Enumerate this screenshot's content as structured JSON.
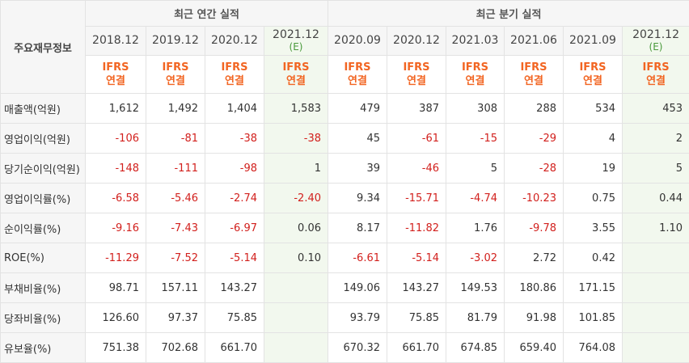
{
  "corner_label": "주요재무정보",
  "annual_title": "최근 연간 실적",
  "quarter_title": "최근 분기 실적",
  "periods": [
    "2018.12",
    "2019.12",
    "2020.12",
    "2021.12",
    "2020.09",
    "2020.12",
    "2021.03",
    "2021.06",
    "2021.09",
    "2021.12"
  ],
  "estimate_tag": "(E)",
  "ifrs_line1": "IFRS",
  "ifrs_line2": "연결",
  "rows": [
    {
      "label": "매출액(억원)",
      "values": [
        "1,612",
        "1,492",
        "1,404",
        "1,583",
        "479",
        "387",
        "308",
        "288",
        "534",
        "453"
      ]
    },
    {
      "label": "영업이익(억원)",
      "values": [
        "-106",
        "-81",
        "-38",
        "-38",
        "45",
        "-61",
        "-15",
        "-29",
        "4",
        "2"
      ]
    },
    {
      "label": "당기순이익(억원)",
      "values": [
        "-148",
        "-111",
        "-98",
        "1",
        "39",
        "-46",
        "5",
        "-28",
        "19",
        "5"
      ]
    },
    {
      "label": "영업이익률(%)",
      "values": [
        "-6.58",
        "-5.46",
        "-2.74",
        "-2.40",
        "9.34",
        "-15.71",
        "-4.74",
        "-10.23",
        "0.75",
        "0.44"
      ]
    },
    {
      "label": "순이익률(%)",
      "values": [
        "-9.16",
        "-7.43",
        "-6.97",
        "0.06",
        "8.17",
        "-11.82",
        "1.76",
        "-9.78",
        "3.55",
        "1.10"
      ]
    },
    {
      "label": "ROE(%)",
      "values": [
        "-11.29",
        "-7.52",
        "-5.14",
        "0.10",
        "-6.61",
        "-5.14",
        "-3.02",
        "2.72",
        "0.42",
        ""
      ]
    },
    {
      "label": "부채비율(%)",
      "values": [
        "98.71",
        "157.11",
        "143.27",
        "",
        "149.06",
        "143.27",
        "149.53",
        "180.86",
        "171.15",
        ""
      ]
    },
    {
      "label": "당좌비율(%)",
      "values": [
        "126.60",
        "97.37",
        "75.85",
        "",
        "93.79",
        "75.85",
        "81.79",
        "91.98",
        "101.85",
        ""
      ]
    },
    {
      "label": "유보율(%)",
      "values": [
        "751.38",
        "702.68",
        "661.70",
        "",
        "670.32",
        "661.70",
        "674.85",
        "659.40",
        "764.08",
        ""
      ]
    }
  ],
  "colors": {
    "negative": "#d2201d",
    "ifrs": "#f26522",
    "estimate_bg": "#f2f8ee",
    "header_bg": "#f6f6f6"
  }
}
